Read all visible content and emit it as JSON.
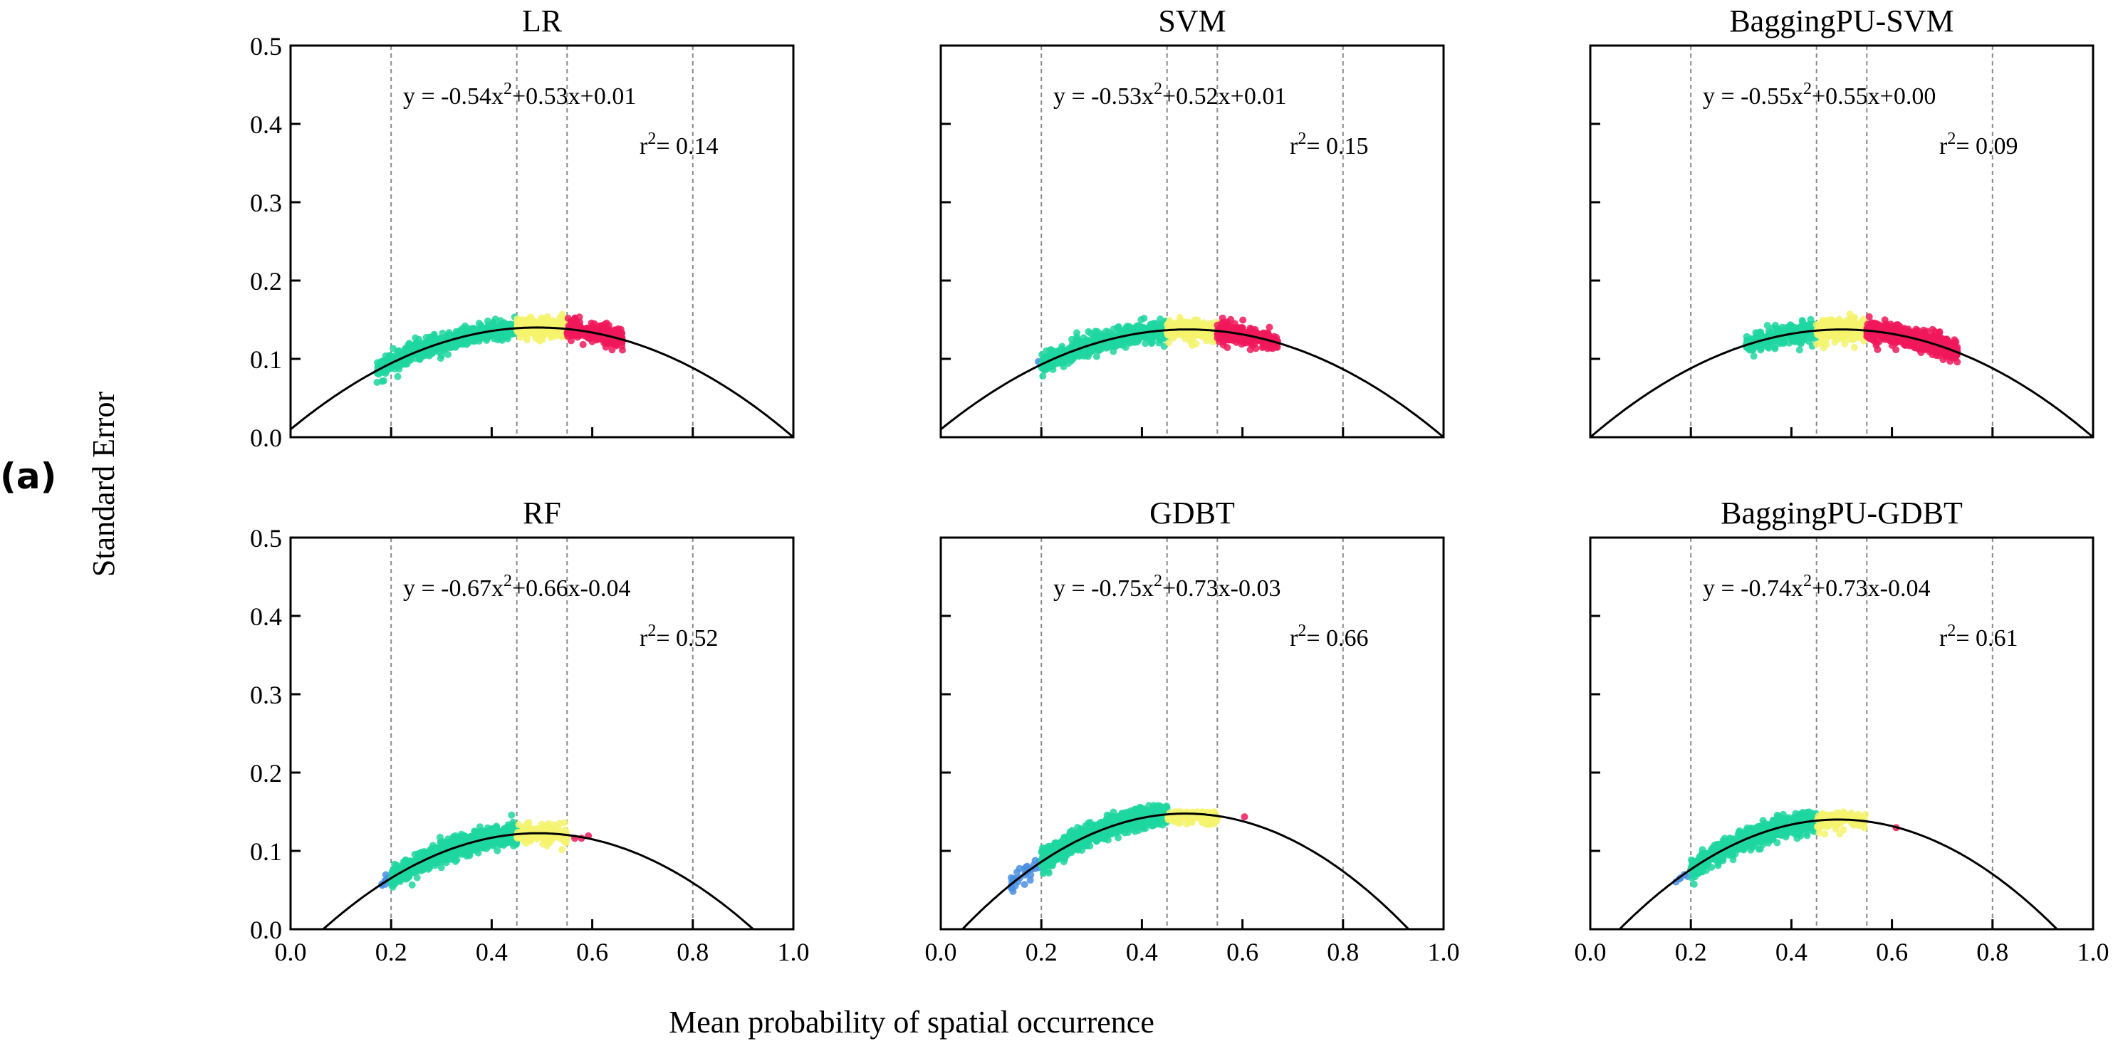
{
  "figure": {
    "panel_label": "(a)",
    "ylabel": "Standard Error",
    "xlabel": "Mean probability of spatial occurrence"
  },
  "colors": {
    "very_low": "#4a90e2",
    "low": "#1fd6a0",
    "moderate": "#f4f36c",
    "high": "#f0185a",
    "curve": "#000000",
    "vline": "#8a8a8a"
  },
  "chart_data": [
    {
      "type": "scatter",
      "title": "LR",
      "equation": {
        "a": -0.54,
        "b": 0.53,
        "c": 0.01,
        "prefix": "y = -0.54x",
        "sup": "2",
        "suffix": "+0.53x+0.01"
      },
      "r2": {
        "label": "r",
        "sup": "2",
        "value": "= 0.14"
      },
      "xlim": [
        0,
        1
      ],
      "ylim": [
        0,
        0.5
      ],
      "xticks": [
        "0.0",
        "0.2",
        "0.4",
        "0.6",
        "0.8",
        "1.0"
      ],
      "yticks": [
        "0.0",
        "0.1",
        "0.2",
        "0.3",
        "0.4",
        "0.5"
      ],
      "vlines": [
        0.2,
        0.45,
        0.55,
        0.8
      ],
      "clusters": [
        {
          "class": "low",
          "x": [
            0.17,
            0.45
          ],
          "peak": 0.18,
          "count": 700
        },
        {
          "class": "moderate",
          "x": [
            0.45,
            0.55
          ],
          "peak": 0.18,
          "count": 280
        },
        {
          "class": "high",
          "x": [
            0.55,
            0.66
          ],
          "peak": 0.17,
          "count": 260
        }
      ]
    },
    {
      "type": "scatter",
      "title": "SVM",
      "equation": {
        "a": -0.53,
        "b": 0.52,
        "c": 0.01,
        "prefix": "y = -0.53x",
        "sup": "2",
        "suffix": "+0.52x+0.01"
      },
      "r2": {
        "label": "r",
        "sup": "2",
        "value": "= 0.15"
      },
      "xlim": [
        0,
        1
      ],
      "ylim": [
        0,
        0.5
      ],
      "xticks": [
        "0.0",
        "0.2",
        "0.4",
        "0.6",
        "0.8",
        "1.0"
      ],
      "yticks": [
        "0.0",
        "0.1",
        "0.2",
        "0.3",
        "0.4",
        "0.5"
      ],
      "vlines": [
        0.2,
        0.45,
        0.55,
        0.8
      ],
      "clusters": [
        {
          "class": "very_low",
          "x": [
            0.19,
            0.2
          ],
          "peak": 0.1,
          "count": 2
        },
        {
          "class": "low",
          "x": [
            0.2,
            0.45
          ],
          "peak": 0.18,
          "count": 650
        },
        {
          "class": "moderate",
          "x": [
            0.45,
            0.55
          ],
          "peak": 0.18,
          "count": 260
        },
        {
          "class": "high",
          "x": [
            0.55,
            0.67
          ],
          "peak": 0.17,
          "count": 260
        }
      ]
    },
    {
      "type": "scatter",
      "title": "BaggingPU-SVM",
      "equation": {
        "a": -0.55,
        "b": 0.55,
        "c": 0.0,
        "prefix": "y = -0.55x",
        "sup": "2",
        "suffix": "+0.55x+0.00"
      },
      "r2": {
        "label": "r",
        "sup": "2",
        "value": "= 0.09"
      },
      "xlim": [
        0,
        1
      ],
      "ylim": [
        0,
        0.5
      ],
      "xticks": [
        "0.0",
        "0.2",
        "0.4",
        "0.6",
        "0.8",
        "1.0"
      ],
      "yticks": [
        "0.0",
        "0.1",
        "0.2",
        "0.3",
        "0.4",
        "0.5"
      ],
      "vlines": [
        0.2,
        0.45,
        0.55,
        0.8
      ],
      "clusters": [
        {
          "class": "low",
          "x": [
            0.31,
            0.45
          ],
          "peak": 0.17,
          "count": 260
        },
        {
          "class": "moderate",
          "x": [
            0.45,
            0.55
          ],
          "peak": 0.18,
          "count": 360
        },
        {
          "class": "high",
          "x": [
            0.55,
            0.73
          ],
          "peak": 0.17,
          "count": 750
        }
      ]
    },
    {
      "type": "scatter",
      "title": "RF",
      "equation": {
        "a": -0.67,
        "b": 0.66,
        "c": -0.04,
        "prefix": "y = -0.67x",
        "sup": "2",
        "suffix": "+0.66x-0.04"
      },
      "r2": {
        "label": "r",
        "sup": "2",
        "value": "= 0.52"
      },
      "xlim": [
        0,
        1
      ],
      "ylim": [
        0,
        0.5
      ],
      "xticks": [
        "0.0",
        "0.2",
        "0.4",
        "0.6",
        "0.8",
        "1.0"
      ],
      "yticks": [
        "0.0",
        "0.1",
        "0.2",
        "0.3",
        "0.4",
        "0.5"
      ],
      "vlines": [
        0.2,
        0.45,
        0.55,
        0.8
      ],
      "clusters": [
        {
          "class": "very_low",
          "x": [
            0.18,
            0.2
          ],
          "peak": 0.08,
          "count": 8
        },
        {
          "class": "low",
          "x": [
            0.2,
            0.45
          ],
          "peak": 0.15,
          "count": 1100
        },
        {
          "class": "moderate",
          "x": [
            0.45,
            0.55
          ],
          "peak": 0.14,
          "count": 110
        },
        {
          "class": "high",
          "x": [
            0.55,
            0.61
          ],
          "peak": 0.13,
          "count": 3
        }
      ]
    },
    {
      "type": "scatter",
      "title": "GDBT",
      "equation": {
        "a": -0.75,
        "b": 0.73,
        "c": -0.03,
        "prefix": "y = -0.75x",
        "sup": "2",
        "suffix": "+0.73x-0.03"
      },
      "r2": {
        "label": "r",
        "sup": "2",
        "value": "= 0.66"
      },
      "xlim": [
        0,
        1
      ],
      "ylim": [
        0,
        0.5
      ],
      "xticks": [
        "0.0",
        "0.2",
        "0.4",
        "0.6",
        "0.8",
        "1.0"
      ],
      "yticks": [
        "0.0",
        "0.1",
        "0.2",
        "0.3",
        "0.4",
        "0.5"
      ],
      "vlines": [
        0.2,
        0.45,
        0.55,
        0.8
      ],
      "clusters": [
        {
          "class": "very_low",
          "x": [
            0.14,
            0.2
          ],
          "peak": 0.11,
          "count": 30
        },
        {
          "class": "low",
          "x": [
            0.2,
            0.45
          ],
          "peak": 0.16,
          "count": 1300
        },
        {
          "class": "moderate",
          "x": [
            0.45,
            0.55
          ],
          "peak": 0.15,
          "count": 130
        },
        {
          "class": "high",
          "x": [
            0.6,
            0.61
          ],
          "peak": 0.145,
          "count": 1
        }
      ]
    },
    {
      "type": "scatter",
      "title": "BaggingPU-GDBT",
      "equation": {
        "a": -0.74,
        "b": 0.73,
        "c": -0.04,
        "prefix": "y = -0.74x",
        "sup": "2",
        "suffix": "+0.73x-0.04"
      },
      "r2": {
        "label": "r",
        "sup": "2",
        "value": "= 0.61"
      },
      "xlim": [
        0,
        1
      ],
      "ylim": [
        0,
        0.5
      ],
      "xticks": [
        "0.0",
        "0.2",
        "0.4",
        "0.6",
        "0.8",
        "1.0"
      ],
      "yticks": [
        "0.0",
        "0.1",
        "0.2",
        "0.3",
        "0.4",
        "0.5"
      ],
      "vlines": [
        0.2,
        0.45,
        0.55,
        0.8
      ],
      "clusters": [
        {
          "class": "very_low",
          "x": [
            0.17,
            0.2
          ],
          "peak": 0.08,
          "count": 6
        },
        {
          "class": "low",
          "x": [
            0.2,
            0.45
          ],
          "peak": 0.15,
          "count": 1100
        },
        {
          "class": "moderate",
          "x": [
            0.45,
            0.55
          ],
          "peak": 0.15,
          "count": 100
        },
        {
          "class": "high",
          "x": [
            0.6,
            0.61
          ],
          "peak": 0.135,
          "count": 1
        }
      ]
    }
  ]
}
